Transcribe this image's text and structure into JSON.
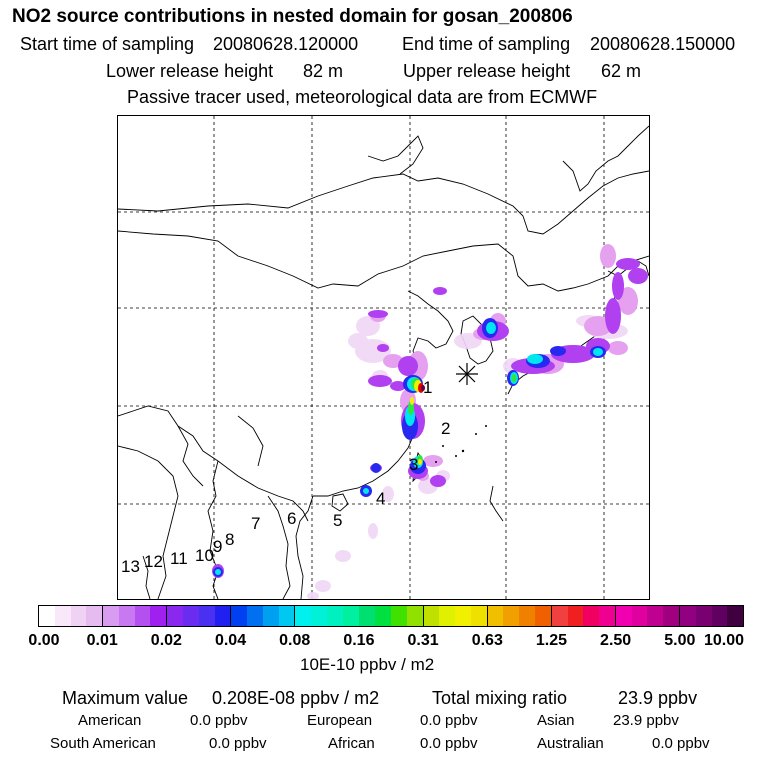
{
  "header": {
    "title": "NO2 source contributions in nested domain for gosan_200806",
    "start_label": "Start time of sampling",
    "start_value": "20080628.120000",
    "end_label": "End time of sampling",
    "end_value": "20080628.150000",
    "lower_label": "Lower release height",
    "lower_value": "82 m",
    "upper_label": "Upper release height",
    "upper_value": "62 m",
    "note": "Passive tracer used, meteorological data are from ECMWF"
  },
  "map": {
    "region_labels": [
      "1",
      "2",
      "3",
      "4",
      "5",
      "6",
      "7",
      "8",
      "9",
      "10",
      "11",
      "12",
      "13"
    ],
    "colors": {
      "white_tint": "#f0d7f5",
      "pink": "#e6a0f0",
      "violet": "#b040f0",
      "blue": "#2828f0",
      "cyan": "#00e6f0",
      "green": "#2ee640",
      "yellow": "#f0f000",
      "red": "#e60000",
      "dark": "#600040"
    }
  },
  "colorbar": {
    "ticks": [
      "0.00",
      "0.01",
      "0.02",
      "0.04",
      "0.08",
      "0.16",
      "0.31",
      "0.63",
      "1.25",
      "2.50",
      "5.00",
      "10.00"
    ],
    "segments": [
      [
        "#ffffff",
        "#f8e8fa",
        "#f0d2f5",
        "#e6bcf0"
      ],
      [
        "#d89cf0",
        "#c878f0",
        "#b450f0",
        "#a020f0"
      ],
      [
        "#8a28f0",
        "#6a2cf0",
        "#4a30f0",
        "#2020f0"
      ],
      [
        "#0040f0",
        "#0070f0",
        "#00a0f0",
        "#00c8f0"
      ],
      [
        "#00f0f0",
        "#00f0d8",
        "#00f0c0",
        "#00f0a0"
      ],
      [
        "#00e070",
        "#00e040",
        "#40e000",
        "#90e000"
      ],
      [
        "#c0e000",
        "#e0f000",
        "#f0f000",
        "#f0e000"
      ],
      [
        "#f0c000",
        "#f0a000",
        "#f08000",
        "#f06000"
      ],
      [
        "#f04040",
        "#f02020",
        "#f00060",
        "#f00090"
      ],
      [
        "#f000b0",
        "#e000a0",
        "#c00090",
        "#a00080"
      ],
      [
        "#900080",
        "#780070",
        "#600060",
        "#400040"
      ]
    ],
    "unit": "10E-10 ppbv / m2"
  },
  "stats": {
    "max_label": "Maximum value",
    "max_value": "0.208E-08 ppbv / m2",
    "total_label": "Total mixing ratio",
    "total_value": "23.9 ppbv",
    "american_label": "American",
    "american_value": "0.0 ppbv",
    "european_label": "European",
    "european_value": "0.0 ppbv",
    "asian_label": "Asian",
    "asian_value": "23.9 ppbv",
    "south_american_label": "South American",
    "south_american_value": "0.0 ppbv",
    "african_label": "African",
    "african_value": "0.0 ppbv",
    "australian_label": "Australian",
    "australian_value": "0.0 ppbv"
  }
}
